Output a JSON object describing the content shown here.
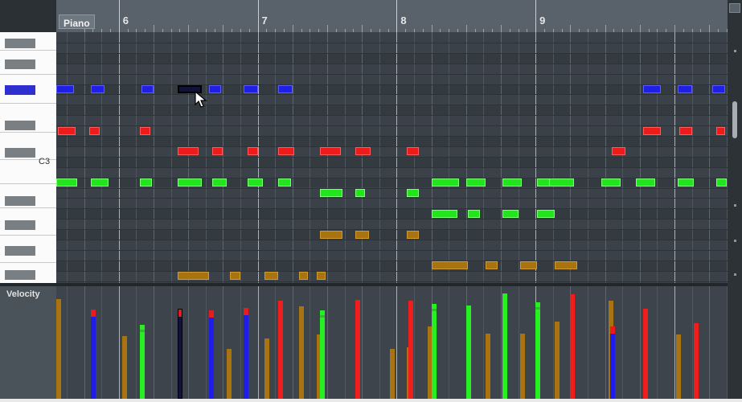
{
  "track": {
    "name": "Piano"
  },
  "ruler": {
    "bars": [
      {
        "label": "6",
        "beat": 6
      },
      {
        "label": "7",
        "beat": 10
      },
      {
        "label": "8",
        "beat": 14
      },
      {
        "label": "9",
        "beat": 18
      }
    ]
  },
  "keyboard": {
    "c3_label": "C3"
  },
  "velocity": {
    "label": "Velocity"
  },
  "colors": {
    "blue": "#1f1fe6",
    "red": "#ee1b1b",
    "green": "#22e51d",
    "brown": "#a9740f",
    "background": "#3a4148"
  },
  "icons": {
    "cursor": "mouse-pointer-icon",
    "scroll_top": "scroll-up-icon"
  }
}
